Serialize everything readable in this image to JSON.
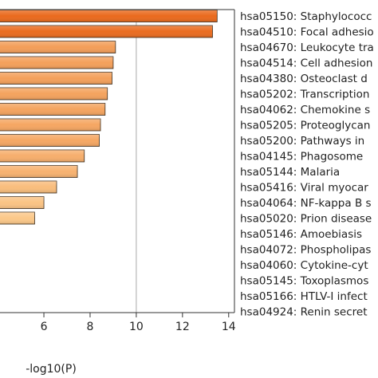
{
  "chart_data": {
    "type": "bar",
    "orientation": "horizontal",
    "title": "",
    "xlabel": "-log10(P)",
    "ylabel": "",
    "xlim": [
      4.1,
      14.25
    ],
    "xticks": [
      6,
      8,
      10,
      12,
      14
    ],
    "gridlines_x": [
      10
    ],
    "bar_gradient": {
      "high": "#ea6a1d",
      "low": "#fbc889"
    },
    "categories": [
      "hsa05150: Staphylococc",
      "hsa04510: Focal adhesio",
      "hsa04670: Leukocyte tra",
      "hsa04514: Cell adhesion",
      "hsa04380: Osteoclast d",
      "hsa05202: Transcription",
      "hsa04062: Chemokine s",
      "hsa05205: Proteoglycan",
      "hsa05200: Pathways in",
      "hsa04145: Phagosome",
      "hsa05144: Malaria",
      "hsa05416: Viral myocar",
      "hsa04064: NF-kappa B s",
      "hsa05020: Prion disease",
      "hsa05146: Amoebiasis",
      "hsa04072: Phospholipas",
      "hsa04060: Cytokine-cyt",
      "hsa05145: Toxoplasmos",
      "hsa05166: HTLV-I infect",
      "hsa04924: Renin secret"
    ],
    "values": [
      13.5,
      13.3,
      9.1,
      9.0,
      8.95,
      8.75,
      8.65,
      8.45,
      8.4,
      7.75,
      7.45,
      6.55,
      6.0,
      5.6,
      null,
      null,
      null,
      null,
      null,
      null
    ]
  }
}
